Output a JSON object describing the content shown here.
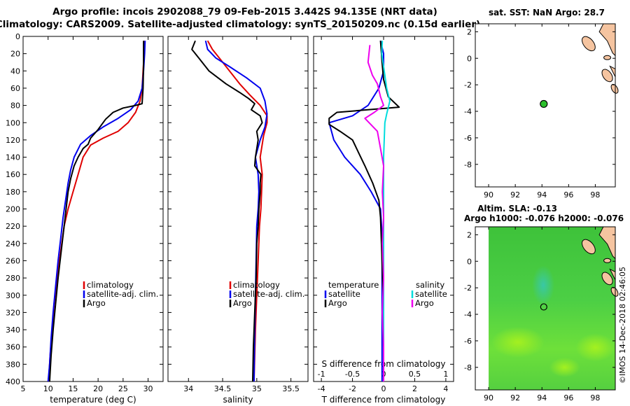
{
  "header": {
    "line1": "Argo profile: incois 2902088_79 09-Feb-2015 3.442S 94.135E (NRT data)",
    "line2": "Climatology: CARS2009. Satellite-adjusted climatology: synTS_20150209.nc (0.15d earlier)"
  },
  "colors": {
    "climatology": "#e00000",
    "satellite": "#0000ee",
    "argo": "#000000",
    "sat_sal": "#00dddd",
    "argo_sal": "#ee00ee",
    "land": "#f5c4a0",
    "ocean": "#55d030"
  },
  "watermark": "©IMOS 14-Dec-2018 02:46:05",
  "chart_data": [
    {
      "id": "temperature",
      "type": "line",
      "xlabel": "temperature (deg C)",
      "xlim": [
        5,
        33
      ],
      "xticks": [
        5,
        10,
        15,
        20,
        25,
        30
      ],
      "ylim": [
        0,
        400
      ],
      "yticks": [
        0,
        20,
        40,
        60,
        80,
        100,
        120,
        140,
        160,
        180,
        200,
        220,
        240,
        260,
        280,
        300,
        320,
        340,
        360,
        380,
        400
      ],
      "legend": [
        "climatology",
        "satellite-adj. clim.",
        "Argo"
      ],
      "series": [
        {
          "name": "climatology",
          "color": "#e00000",
          "points": [
            [
              29.2,
              5
            ],
            [
              29.2,
              20
            ],
            [
              29,
              40
            ],
            [
              28.8,
              60
            ],
            [
              28.4,
              75
            ],
            [
              27.5,
              88
            ],
            [
              26,
              100
            ],
            [
              24,
              110
            ],
            [
              21,
              118
            ],
            [
              18.5,
              126
            ],
            [
              17,
              140
            ],
            [
              16,
              160
            ],
            [
              15,
              180
            ],
            [
              14,
              200
            ],
            [
              13.2,
              220
            ],
            [
              12.5,
              250
            ],
            [
              11.8,
              280
            ],
            [
              11.2,
              310
            ],
            [
              10.8,
              340
            ],
            [
              10.4,
              370
            ],
            [
              10.1,
              400
            ]
          ]
        },
        {
          "name": "satellite-adj. clim.",
          "color": "#0000ee",
          "points": [
            [
              29.4,
              5
            ],
            [
              29.3,
              20
            ],
            [
              29.1,
              40
            ],
            [
              28.8,
              60
            ],
            [
              28,
              75
            ],
            [
              26.5,
              85
            ],
            [
              24,
              95
            ],
            [
              21,
              105
            ],
            [
              18.5,
              115
            ],
            [
              16.5,
              125
            ],
            [
              15.2,
              140
            ],
            [
              14.5,
              155
            ],
            [
              14,
              170
            ],
            [
              13.5,
              190
            ],
            [
              13,
              210
            ],
            [
              12.5,
              235
            ],
            [
              12,
              260
            ],
            [
              11.5,
              290
            ],
            [
              11,
              320
            ],
            [
              10.6,
              350
            ],
            [
              10.3,
              380
            ],
            [
              10,
              400
            ]
          ]
        },
        {
          "name": "Argo",
          "color": "#000000",
          "points": [
            [
              29.1,
              5
            ],
            [
              29.1,
              30
            ],
            [
              29,
              60
            ],
            [
              28.8,
              78
            ],
            [
              27.5,
              80
            ],
            [
              25,
              83
            ],
            [
              23,
              88
            ],
            [
              21.5,
              96
            ],
            [
              20,
              108
            ],
            [
              18.5,
              118
            ],
            [
              18,
              125
            ],
            [
              17,
              130
            ],
            [
              16,
              140
            ],
            [
              15.2,
              150
            ],
            [
              14.5,
              165
            ],
            [
              14,
              180
            ],
            [
              13.6,
              200
            ],
            [
              13.2,
              220
            ],
            [
              12.6,
              250
            ],
            [
              12,
              280
            ],
            [
              11.5,
              310
            ],
            [
              11,
              340
            ],
            [
              10.6,
              370
            ],
            [
              10.3,
              400
            ]
          ]
        }
      ]
    },
    {
      "id": "salinity",
      "type": "line",
      "xlabel": "salinity",
      "xlim": [
        33.7,
        35.75
      ],
      "xticks": [
        34,
        34.5,
        35,
        35.5
      ],
      "xtick_labels": [
        "34",
        "34.5",
        "35",
        "35.5"
      ],
      "ylim": [
        0,
        400
      ],
      "legend": [
        "climatology",
        "satellite-adj. clim.",
        "Argo"
      ],
      "series": [
        {
          "name": "climatology",
          "color": "#e00000",
          "points": [
            [
              34.28,
              5
            ],
            [
              34.35,
              15
            ],
            [
              34.45,
              25
            ],
            [
              34.6,
              40
            ],
            [
              34.75,
              55
            ],
            [
              34.9,
              68
            ],
            [
              35.05,
              80
            ],
            [
              35.15,
              92
            ],
            [
              35.15,
              100
            ],
            [
              35.1,
              115
            ],
            [
              35.05,
              140
            ],
            [
              35.08,
              160
            ],
            [
              35.07,
              180
            ],
            [
              35.06,
              200
            ],
            [
              35.04,
              220
            ],
            [
              35.02,
              260
            ],
            [
              35,
              300
            ],
            [
              34.98,
              340
            ],
            [
              34.96,
              400
            ]
          ]
        },
        {
          "name": "satellite-adj. clim.",
          "color": "#0000ee",
          "points": [
            [
              34.25,
              5
            ],
            [
              34.28,
              15
            ],
            [
              34.4,
              25
            ],
            [
              34.6,
              35
            ],
            [
              34.85,
              48
            ],
            [
              35.05,
              60
            ],
            [
              35.12,
              75
            ],
            [
              35.15,
              90
            ],
            [
              35.12,
              105
            ],
            [
              35.05,
              120
            ],
            [
              34.98,
              140
            ],
            [
              35.02,
              160
            ],
            [
              35.03,
              180
            ],
            [
              35.02,
              200
            ],
            [
              35,
              220
            ],
            [
              34.99,
              260
            ],
            [
              34.98,
              300
            ],
            [
              34.97,
              340
            ],
            [
              34.96,
              400
            ]
          ]
        },
        {
          "name": "Argo",
          "color": "#000000",
          "points": [
            [
              34.1,
              5
            ],
            [
              34.05,
              15
            ],
            [
              34.15,
              25
            ],
            [
              34.3,
              40
            ],
            [
              34.55,
              55
            ],
            [
              34.75,
              65
            ],
            [
              34.88,
              72
            ],
            [
              34.97,
              78
            ],
            [
              34.92,
              85
            ],
            [
              35.05,
              92
            ],
            [
              35.08,
              100
            ],
            [
              35,
              110
            ],
            [
              35.02,
              120
            ],
            [
              34.98,
              140
            ],
            [
              34.97,
              150
            ],
            [
              35.06,
              160
            ],
            [
              35.05,
              170
            ],
            [
              35.05,
              180
            ],
            [
              35.03,
              200
            ],
            [
              35.02,
              220
            ],
            [
              35,
              240
            ],
            [
              34.99,
              280
            ],
            [
              34.97,
              320
            ],
            [
              34.95,
              360
            ],
            [
              34.94,
              400
            ]
          ]
        }
      ]
    },
    {
      "id": "differences",
      "type": "line",
      "xlabel": "T difference from climatology",
      "xlim": [
        -4.5,
        4.5
      ],
      "xticks": [
        -4,
        -2,
        0,
        2,
        4
      ],
      "top_axis_label": "S difference from climatology",
      "top_xticks": [
        -1,
        -0.5,
        0,
        0.5,
        1
      ],
      "top_xtick_labels": [
        "-1",
        "-0.5",
        "0",
        "0.5",
        "1"
      ],
      "ylim": [
        0,
        400
      ],
      "legend_t": [
        "temperature",
        "satellite",
        "Argo"
      ],
      "legend_s": [
        "salinity",
        "satellite",
        "Argo"
      ],
      "series": [
        {
          "name": "T satellite",
          "color": "#0000ee",
          "points": [
            [
              -0.2,
              5
            ],
            [
              0,
              20
            ],
            [
              0,
              40
            ],
            [
              -0.3,
              60
            ],
            [
              -1,
              80
            ],
            [
              -2,
              92
            ],
            [
              -3.5,
              100
            ],
            [
              -3.2,
              120
            ],
            [
              -2.5,
              140
            ],
            [
              -1.5,
              160
            ],
            [
              -0.8,
              180
            ],
            [
              -0.2,
              200
            ],
            [
              -0.1,
              230
            ],
            [
              -0.1,
              260
            ],
            [
              -0.1,
              300
            ],
            [
              -0.1,
              340
            ],
            [
              -0.1,
              400
            ]
          ]
        },
        {
          "name": "T Argo",
          "color": "#000000",
          "points": [
            [
              -0.2,
              5
            ],
            [
              -0.1,
              30
            ],
            [
              0,
              50
            ],
            [
              0.3,
              70
            ],
            [
              1,
              82
            ],
            [
              -1,
              85
            ],
            [
              -3,
              88
            ],
            [
              -3.5,
              95
            ],
            [
              -3.5,
              102
            ],
            [
              -2.8,
              110
            ],
            [
              -2,
              120
            ],
            [
              -1.6,
              135
            ],
            [
              -1.2,
              150
            ],
            [
              -0.7,
              170
            ],
            [
              -0.3,
              190
            ],
            [
              -0.2,
              210
            ],
            [
              -0.1,
              260
            ],
            [
              0,
              320
            ],
            [
              0,
              400
            ]
          ]
        },
        {
          "name": "S satellite",
          "color": "#00dddd",
          "points": [
            [
              -0.02,
              5
            ],
            [
              -0.03,
              20
            ],
            [
              0.01,
              40
            ],
            [
              0.05,
              60
            ],
            [
              0.1,
              75
            ],
            [
              0.05,
              90
            ],
            [
              0.02,
              100
            ],
            [
              0.01,
              120
            ],
            [
              0,
              140
            ],
            [
              0,
              180
            ],
            [
              0,
              220
            ],
            [
              0,
              260
            ],
            [
              0,
              300
            ],
            [
              0,
              340
            ],
            [
              0,
              400
            ]
          ]
        },
        {
          "name": "S Argo",
          "color": "#ee00ee",
          "points": [
            [
              -0.22,
              10
            ],
            [
              -0.25,
              30
            ],
            [
              -0.18,
              45
            ],
            [
              -0.1,
              55
            ],
            [
              -0.05,
              70
            ],
            [
              0,
              80
            ],
            [
              -0.15,
              88
            ],
            [
              -0.3,
              95
            ],
            [
              -0.1,
              110
            ],
            [
              -0.05,
              130
            ],
            [
              0,
              150
            ],
            [
              -0.02,
              180
            ],
            [
              0,
              210
            ],
            [
              -0.02,
              240
            ],
            [
              0,
              280
            ],
            [
              -0.02,
              320
            ],
            [
              0,
              360
            ],
            [
              0,
              400
            ]
          ]
        }
      ]
    },
    {
      "id": "map_sst",
      "type": "scatter",
      "title": "sat. SST: NaN Argo: 28.7",
      "xlim": [
        89,
        99.5
      ],
      "ylim": [
        -9.7,
        2.6
      ],
      "xticks": [
        90,
        92,
        94,
        96,
        98
      ],
      "yticks": [
        2,
        0,
        -2,
        -4,
        -6,
        -8
      ],
      "points": [
        {
          "x": 94.135,
          "y": -3.442
        }
      ]
    },
    {
      "id": "map_sla",
      "type": "heatmap",
      "title": "Altim. SLA: -0.13",
      "subtitle": "Argo h1000: -0.076 h2000: -0.076",
      "xlim": [
        89,
        99.5
      ],
      "ylim": [
        -9.7,
        2.6
      ],
      "xticks": [
        90,
        92,
        94,
        96,
        98
      ],
      "yticks": [
        2,
        0,
        -2,
        -4,
        -6,
        -8
      ],
      "points": [
        {
          "x": 94.135,
          "y": -3.442
        }
      ]
    }
  ]
}
